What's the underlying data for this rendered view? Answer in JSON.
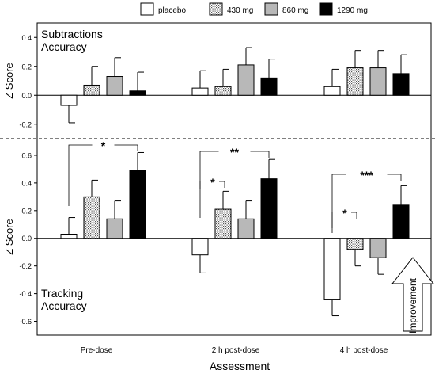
{
  "chart_data": [
    {
      "type": "bar",
      "panel_label": "Subtractions\nAccuracy",
      "ylabel": "Z Score",
      "ylim": [
        -0.3,
        0.5
      ],
      "yticks": [
        -0.2,
        0.0,
        0.2,
        0.4
      ],
      "categories": [
        "Pre-dose",
        "2 h post-dose",
        "4 h post-dose"
      ],
      "series": [
        {
          "name": "placebo",
          "values": [
            -0.07,
            0.05,
            0.06
          ],
          "errors": [
            0.12,
            0.12,
            0.12
          ]
        },
        {
          "name": "430 mg",
          "values": [
            0.07,
            0.06,
            0.19
          ],
          "errors": [
            0.13,
            0.12,
            0.12
          ]
        },
        {
          "name": "860 mg",
          "values": [
            0.13,
            0.21,
            0.19
          ],
          "errors": [
            0.13,
            0.12,
            0.12
          ]
        },
        {
          "name": "1290 mg",
          "values": [
            0.03,
            0.12,
            0.15
          ],
          "errors": [
            0.13,
            0.13,
            0.13
          ]
        }
      ]
    },
    {
      "type": "bar",
      "panel_label": "Tracking\nAccuracy",
      "ylabel": "Z Score",
      "ylim": [
        -0.7,
        0.72
      ],
      "yticks": [
        -0.6,
        -0.4,
        -0.2,
        0.0,
        0.2,
        0.4,
        0.6
      ],
      "categories": [
        "Pre-dose",
        "2 h post-dose",
        "4 h post-dose"
      ],
      "series": [
        {
          "name": "placebo",
          "values": [
            0.03,
            -0.12,
            -0.44
          ],
          "errors": [
            0.12,
            0.13,
            0.12
          ]
        },
        {
          "name": "430 mg",
          "values": [
            0.3,
            0.21,
            -0.08
          ],
          "errors": [
            0.12,
            0.13,
            0.12
          ]
        },
        {
          "name": "860 mg",
          "values": [
            0.14,
            0.14,
            -0.14
          ],
          "errors": [
            0.13,
            0.13,
            0.12
          ]
        },
        {
          "name": "1290 mg",
          "values": [
            0.49,
            0.43,
            0.24
          ],
          "errors": [
            0.13,
            0.14,
            0.14
          ]
        }
      ],
      "annotations": [
        {
          "text": "*",
          "group": 0,
          "from": 0,
          "to": 3
        },
        {
          "text": "**",
          "group": 1,
          "from": 0,
          "to": 3
        },
        {
          "text": "*",
          "group": 1,
          "from": 0,
          "to": 1
        },
        {
          "text": "***",
          "group": 2,
          "from": 0,
          "to": 3
        },
        {
          "text": "*",
          "group": 2,
          "from": 0,
          "to": 1
        }
      ],
      "arrow_label": "Improvement"
    }
  ],
  "legend": {
    "position": "top",
    "items": [
      {
        "name": "placebo",
        "fill": "white"
      },
      {
        "name": "430 mg",
        "fill": "dotted"
      },
      {
        "name": "860 mg",
        "fill": "#b8b8b8"
      },
      {
        "name": "1290 mg",
        "fill": "#000000"
      }
    ]
  },
  "xlabel": "Assessment",
  "colors": {
    "placebo": "#ffffff",
    "430": "#eeeeee",
    "860": "#b8b8b8",
    "1290": "#000000"
  }
}
